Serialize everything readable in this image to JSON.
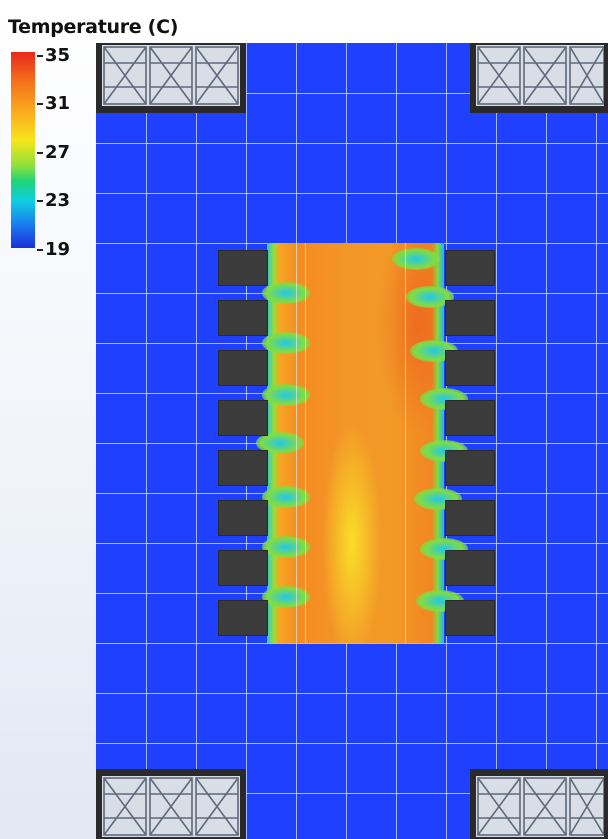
{
  "legend": {
    "title": "Temperature (C)",
    "ticks": [
      "35",
      "31",
      "27",
      "23",
      "19"
    ]
  },
  "colors": {
    "floor_cold": "#1f41ff",
    "hot_aisle": "#f39628",
    "rack": "#3b3b3b",
    "crac_frame": "#2a2a2a"
  },
  "icons": [
    "crac-unit-icon",
    "server-rack-icon"
  ]
}
